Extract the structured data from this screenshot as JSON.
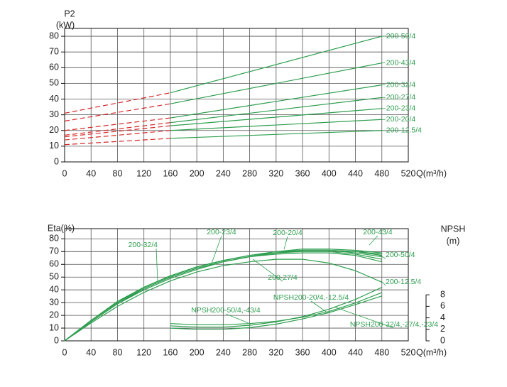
{
  "chart_data": [
    {
      "type": "line",
      "y_label": "P2",
      "y_unit": "(kW)",
      "x_label": "Q(m³/h)",
      "xlim": [
        0,
        520
      ],
      "xticks": [
        0,
        40,
        80,
        120,
        160,
        200,
        240,
        280,
        320,
        360,
        400,
        440,
        480,
        520
      ],
      "ylim": [
        0,
        85
      ],
      "yticks": [
        0,
        10,
        20,
        30,
        40,
        50,
        60,
        70,
        80
      ],
      "grid": true,
      "dashed_color": "#d62728",
      "x": [
        0,
        160,
        480
      ],
      "series": [
        {
          "name": "200-50/4",
          "color": "#2e9e4f",
          "values": [
            31,
            44,
            80
          ]
        },
        {
          "name": "200-43/4",
          "color": "#2e9e4f",
          "values": [
            26,
            37,
            63
          ]
        },
        {
          "name": "200-32/4",
          "color": "#2e9e4f",
          "values": [
            20,
            28,
            49
          ]
        },
        {
          "name": "200-27/4",
          "color": "#2e9e4f",
          "values": [
            17,
            25,
            41
          ]
        },
        {
          "name": "200-23/4",
          "color": "#2e9e4f",
          "values": [
            16,
            23,
            34
          ]
        },
        {
          "name": "200-20/4",
          "color": "#2e9e4f",
          "values": [
            14,
            20,
            27
          ]
        },
        {
          "name": "200-12.5/4",
          "color": "#2e9e4f",
          "values": [
            11,
            15,
            20
          ]
        }
      ]
    },
    {
      "type": "line",
      "y_label": "Eta(%)",
      "y2_label": "NPSH",
      "y2_unit": "(m)",
      "x_label": "Q(m³/h)",
      "xlim": [
        0,
        520
      ],
      "xticks": [
        0,
        40,
        80,
        120,
        160,
        200,
        240,
        280,
        320,
        360,
        400,
        440,
        480,
        520
      ],
      "ylim": [
        0,
        88
      ],
      "yticks": [
        0,
        10,
        20,
        30,
        40,
        50,
        60,
        70,
        80
      ],
      "y2lim": [
        0,
        19.5
      ],
      "y2ticks": [
        0,
        2,
        4,
        6,
        8
      ],
      "grid": true,
      "x": [
        0,
        40,
        80,
        120,
        160,
        200,
        240,
        280,
        320,
        360,
        400,
        440,
        480
      ],
      "series": [
        {
          "name": "200-32/4",
          "color": "#2e9e4f",
          "values": [
            0,
            15,
            29,
            40,
            49,
            56,
            62,
            66,
            69,
            70,
            70,
            68,
            64
          ]
        },
        {
          "name": "200-23/4",
          "color": "#2e9e4f",
          "values": [
            0,
            16,
            30,
            42,
            51,
            58,
            63,
            67,
            69,
            71,
            71,
            69,
            66
          ]
        },
        {
          "name": "200-20/4",
          "color": "#2e9e4f",
          "values": [
            0,
            16,
            31,
            42,
            51,
            58,
            63,
            67,
            70,
            71,
            71,
            70,
            68
          ]
        },
        {
          "name": "200-43/4",
          "color": "#2e9e4f",
          "values": [
            0,
            16,
            30,
            42,
            51,
            58,
            63,
            67,
            70,
            72,
            72,
            71,
            69
          ]
        },
        {
          "name": "200-50/4",
          "color": "#2e9e4f",
          "values": [
            0,
            16,
            30,
            41,
            50,
            57,
            62,
            66,
            69,
            71,
            71,
            70,
            67
          ]
        },
        {
          "name": "200-27/4",
          "color": "#2e9e4f",
          "values": [
            0,
            15,
            29,
            41,
            50,
            57,
            62,
            66,
            68,
            69,
            69,
            67,
            62
          ]
        },
        {
          "name": "200-12.5/4",
          "color": "#2e9e4f",
          "values": [
            0,
            14,
            27,
            38,
            47,
            54,
            59,
            62,
            64,
            64,
            61,
            55,
            46
          ]
        },
        {
          "name": "NPSH200-20/4,-12.5/4",
          "color": "#2e9e4f",
          "axis": "y2",
          "x": [
            160,
            200,
            240,
            280,
            320,
            360,
            400,
            440,
            480
          ],
          "values": [
            2.6,
            2.4,
            2.4,
            2.7,
            3.3,
            4.2,
            5.5,
            7.2,
            9.3
          ]
        },
        {
          "name": "NPSH200-50/4,-43/4",
          "color": "#2e9e4f",
          "axis": "y2",
          "x": [
            160,
            200,
            240,
            280,
            320,
            360,
            400,
            440,
            480
          ],
          "values": [
            3.0,
            2.8,
            2.8,
            3.0,
            3.4,
            4.1,
            5.1,
            6.6,
            8.4
          ]
        },
        {
          "name": "NPSH200-32/4,-27/4,-23/4",
          "color": "#2e9e4f",
          "axis": "y2",
          "x": [
            160,
            200,
            240,
            280,
            320,
            360,
            400,
            440,
            480
          ],
          "values": [
            2.2,
            2.0,
            2.0,
            2.3,
            2.9,
            3.8,
            4.9,
            6.3,
            7.8
          ]
        }
      ]
    }
  ]
}
